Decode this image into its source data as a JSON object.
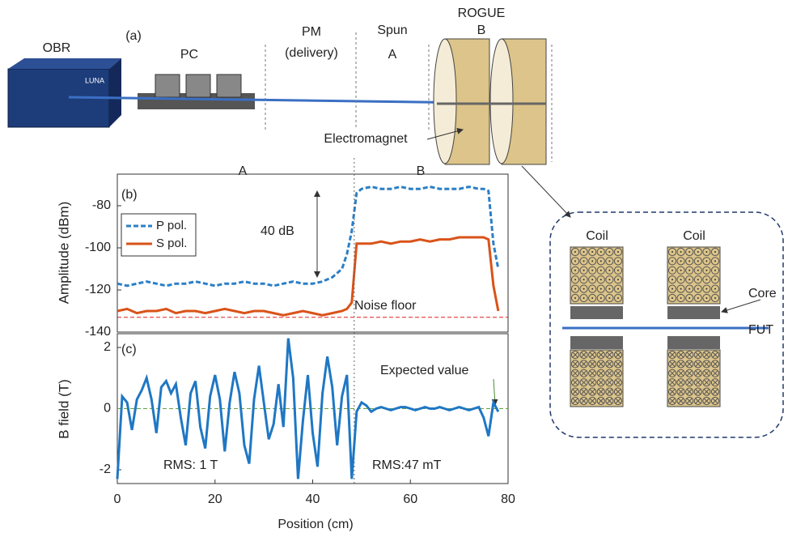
{
  "chart_data": [
    {
      "type": "line",
      "panel_label": "(b)",
      "y_label": "Amplitude (dBm)",
      "region_labels": [
        "A",
        "B"
      ],
      "annotations": [
        "40 dB",
        "Noise floor"
      ],
      "xlim": [
        0,
        80
      ],
      "ylim": [
        -140,
        -65
      ],
      "yticks": [
        -140,
        -120,
        -100,
        -80
      ],
      "divider": 48.5,
      "noise_floor": -133,
      "noise_color": "#e02020",
      "x": [
        0,
        2,
        4,
        6,
        8,
        10,
        12,
        14,
        16,
        18,
        20,
        22,
        24,
        26,
        28,
        30,
        32,
        34,
        36,
        38,
        40,
        42,
        44,
        46,
        47,
        48,
        49,
        50,
        52,
        54,
        56,
        58,
        60,
        62,
        64,
        66,
        68,
        70,
        72,
        74,
        75,
        76,
        77,
        78
      ],
      "series": [
        {
          "name": "P pol.",
          "color": "#2b7fc6",
          "dash": true,
          "values": [
            -117,
            -118,
            -117,
            -116,
            -117,
            -118,
            -117,
            -117,
            -116,
            -117,
            -118,
            -117,
            -117,
            -116,
            -117,
            -117,
            -118,
            -117,
            -116,
            -117,
            -117,
            -116,
            -114,
            -110,
            -103,
            -92,
            -74,
            -72,
            -71,
            -72,
            -72,
            -71,
            -72,
            -72,
            -71,
            -72,
            -72,
            -72,
            -71,
            -72,
            -72,
            -73,
            -98,
            -110
          ]
        },
        {
          "name": "S pol.",
          "color": "#d95319",
          "dash": false,
          "values": [
            -130,
            -129,
            -131,
            -130,
            -130,
            -129,
            -131,
            -130,
            -130,
            -131,
            -130,
            -129,
            -130,
            -131,
            -130,
            -130,
            -131,
            -132,
            -131,
            -130,
            -131,
            -132,
            -131,
            -130,
            -129,
            -126,
            -98,
            -98,
            -98,
            -97,
            -98,
            -97,
            -97,
            -96,
            -97,
            -96,
            -96,
            -95,
            -95,
            -95,
            -95,
            -96,
            -118,
            -130
          ]
        }
      ]
    },
    {
      "type": "line",
      "panel_label": "(c)",
      "y_label": "B field (T)",
      "x_label": "Position (cm)",
      "annotations": [
        "Expected value",
        "RMS: 1 T",
        "RMS:47 mT"
      ],
      "xlim": [
        0,
        80
      ],
      "xticks": [
        0,
        20,
        40,
        60,
        80
      ],
      "ylim": [
        -2.45,
        2.45
      ],
      "yticks": [
        -2,
        0,
        2
      ],
      "reference_y": 0,
      "reference_color": "#6aa040",
      "x": [
        0,
        1,
        2,
        3,
        4,
        5,
        6,
        7,
        8,
        9,
        10,
        11,
        12,
        13,
        14,
        15,
        16,
        17,
        18,
        19,
        20,
        21,
        22,
        23,
        24,
        25,
        26,
        27,
        28,
        29,
        30,
        31,
        32,
        33,
        34,
        35,
        36,
        37,
        38,
        39,
        40,
        41,
        42,
        43,
        44,
        45,
        46,
        47,
        48,
        49,
        50,
        51,
        52,
        53,
        54,
        55,
        56,
        57,
        58,
        59,
        60,
        61,
        62,
        63,
        64,
        65,
        66,
        67,
        68,
        69,
        70,
        71,
        72,
        73,
        74,
        75,
        76,
        77,
        78
      ],
      "series": [
        {
          "color": "#1f77c4",
          "values": [
            -2.3,
            0.4,
            0.2,
            -0.7,
            0.3,
            0.6,
            1.0,
            0.3,
            -0.8,
            0.7,
            0.9,
            0.5,
            0.8,
            -0.3,
            -1.2,
            0.5,
            0.9,
            -0.6,
            -1.3,
            0.4,
            1.1,
            0.3,
            -1.4,
            0.2,
            1.2,
            0.5,
            -1.2,
            -1.8,
            0.3,
            1.4,
            0.2,
            -1.0,
            -0.5,
            0.8,
            -0.6,
            2.3,
            1.0,
            -2.3,
            -0.4,
            1.1,
            -0.8,
            -1.9,
            0.5,
            1.7,
            0.7,
            -1.2,
            0.4,
            1.1,
            -2.3,
            -0.1,
            0.2,
            0.1,
            -0.1,
            0,
            0.05,
            0,
            -0.05,
            0,
            0.05,
            0.05,
            0,
            -0.05,
            0,
            0.05,
            0,
            0,
            0.05,
            0,
            -0.05,
            0,
            0.05,
            0,
            -0.05,
            0,
            0.05,
            -0.3,
            -0.9,
            0.2,
            -0.1
          ]
        }
      ]
    }
  ],
  "diagram": {
    "obr": "OBR",
    "panel_label": "(a)",
    "pc": "PC",
    "pm": "PM",
    "pm_note": "(delivery)",
    "spun": "Spun",
    "spun_region": "A",
    "rogue": "ROGUE",
    "rogue_region": "B",
    "electromagnet": "Electromagnet",
    "device_brand": "LUNA",
    "inset": {
      "coil_left": "Coil",
      "coil_right": "Coil",
      "core": "Core",
      "fut": "FUT"
    }
  }
}
